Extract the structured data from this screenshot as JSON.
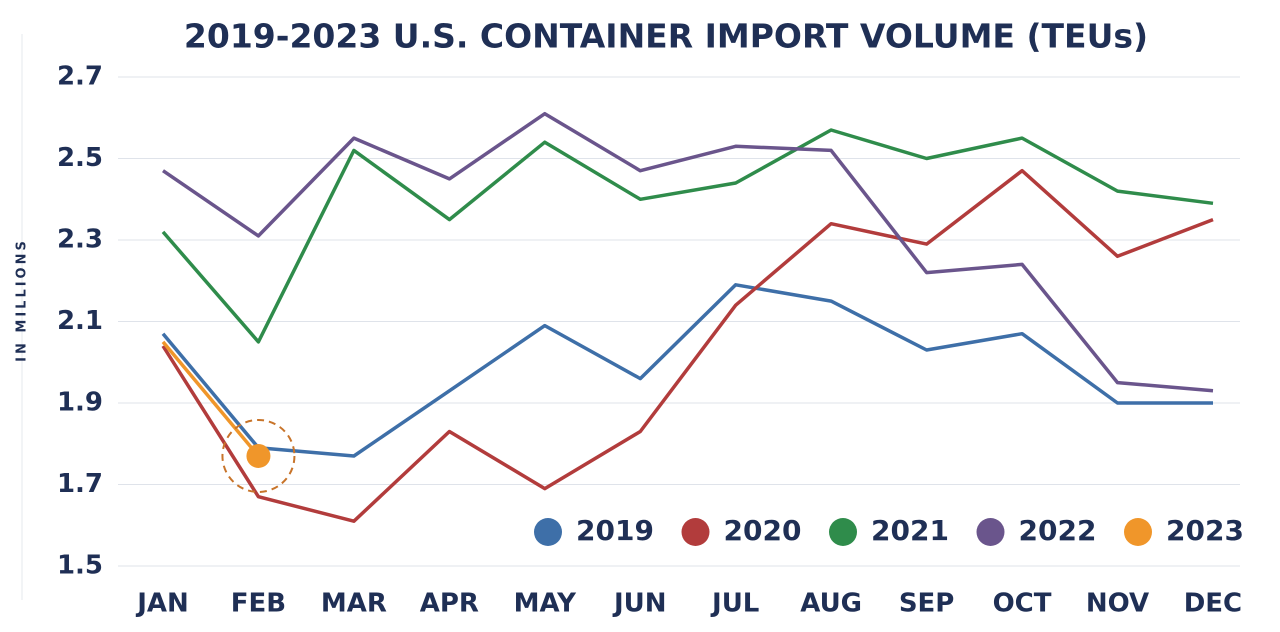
{
  "chart_data": {
    "type": "line",
    "title": "2019-2023 U.S. CONTAINER IMPORT VOLUME (TEUs)",
    "y_label": "IN MILLIONS",
    "categories": [
      "JAN",
      "FEB",
      "MAR",
      "APR",
      "MAY",
      "JUN",
      "JUL",
      "AUG",
      "SEP",
      "OCT",
      "NOV",
      "DEC"
    ],
    "series": [
      {
        "name": "2019",
        "color": "#3e6fa8",
        "values": [
          2.07,
          1.79,
          1.77,
          1.93,
          2.09,
          1.96,
          2.19,
          2.15,
          2.03,
          2.07,
          1.9,
          1.9
        ]
      },
      {
        "name": "2020",
        "color": "#b23c3c",
        "values": [
          2.04,
          1.67,
          1.61,
          1.83,
          1.69,
          1.83,
          2.14,
          2.34,
          2.29,
          2.47,
          2.26,
          2.35
        ]
      },
      {
        "name": "2021",
        "color": "#2f8c4b",
        "values": [
          2.32,
          2.05,
          2.52,
          2.35,
          2.54,
          2.4,
          2.44,
          2.57,
          2.5,
          2.55,
          2.42,
          2.39
        ]
      },
      {
        "name": "2022",
        "color": "#6a558c",
        "values": [
          2.47,
          2.31,
          2.55,
          2.45,
          2.61,
          2.47,
          2.53,
          2.52,
          2.22,
          2.24,
          1.95,
          1.93
        ]
      },
      {
        "name": "2023",
        "color": "#f0962a",
        "values": [
          2.05,
          1.77,
          null,
          null,
          null,
          null,
          null,
          null,
          null,
          null,
          null,
          null
        ]
      }
    ],
    "ylim": [
      1.5,
      2.7
    ],
    "yticks": [
      1.5,
      1.7,
      1.9,
      2.1,
      2.3,
      2.5,
      2.7
    ],
    "grid": true,
    "legend": "lower right"
  }
}
